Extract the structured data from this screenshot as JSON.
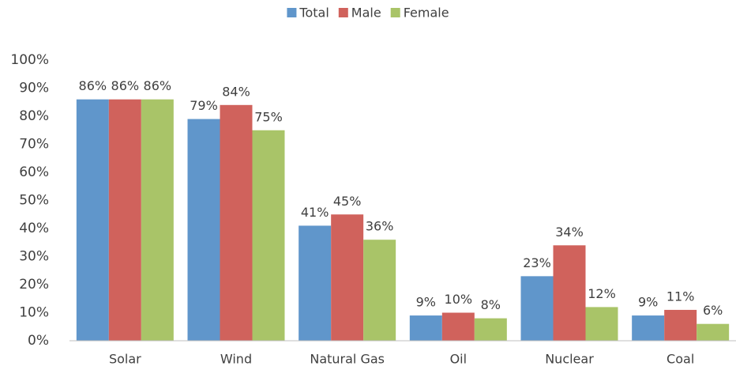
{
  "chart_data": {
    "type": "bar",
    "categories": [
      "Solar",
      "Wind",
      "Natural Gas",
      "Oil",
      "Nuclear",
      "Coal"
    ],
    "series": [
      {
        "name": "Total",
        "color": "#6096cb",
        "values": [
          86,
          79,
          41,
          9,
          23,
          9
        ],
        "value_labels": [
          "86%",
          "79%",
          "41%",
          "9%",
          "23%",
          "9%"
        ]
      },
      {
        "name": "Male",
        "color": "#d0625c",
        "values": [
          86,
          84,
          45,
          10,
          34,
          11
        ],
        "value_labels": [
          "86%",
          "84%",
          "45%",
          "10%",
          "34%",
          "11%"
        ]
      },
      {
        "name": "Female",
        "color": "#a9c468",
        "values": [
          86,
          75,
          36,
          8,
          12,
          6
        ],
        "value_labels": [
          "86%",
          "75%",
          "36%",
          "8%",
          "12%",
          "6%"
        ]
      }
    ],
    "ylim": [
      0,
      100
    ],
    "yticks": [
      {
        "value": 0,
        "label": "0%"
      },
      {
        "value": 10,
        "label": "10%"
      },
      {
        "value": 20,
        "label": "20%"
      },
      {
        "value": 30,
        "label": "30%"
      },
      {
        "value": 40,
        "label": "40%"
      },
      {
        "value": 50,
        "label": "50%"
      },
      {
        "value": 60,
        "label": "60%"
      },
      {
        "value": 70,
        "label": "70%"
      },
      {
        "value": 80,
        "label": "80%"
      },
      {
        "value": 90,
        "label": "90%"
      },
      {
        "value": 100,
        "label": "100%"
      }
    ],
    "legend": "top",
    "grid": false
  }
}
